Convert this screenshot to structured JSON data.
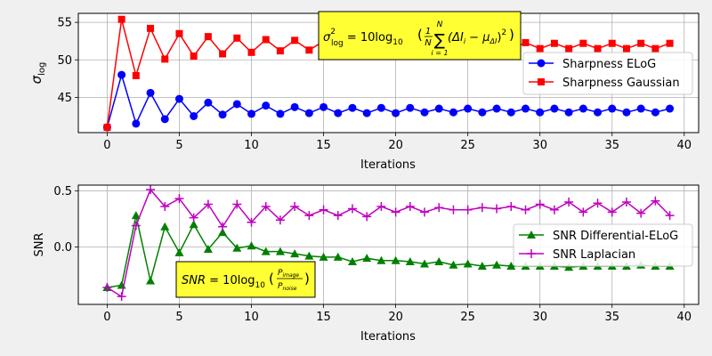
{
  "chart_data": [
    {
      "type": "line",
      "xlabel": "Iterations",
      "ylabel": "σ_log",
      "xlim": [
        -2,
        41
      ],
      "ylim": [
        40.3,
        56.2
      ],
      "xticks": [
        0,
        5,
        10,
        15,
        20,
        25,
        30,
        35,
        40
      ],
      "yticks": [
        45,
        50,
        55
      ],
      "grid": true,
      "legend_position": "center-right",
      "annotation": {
        "position": "top-center",
        "background": "#ffff33",
        "formula": {
          "lhs_base": "σ",
          "lhs_sup": "2",
          "lhs_sub": "log",
          "eq": " = 10log",
          "log_sub": "10",
          "frac_num": "1",
          "frac_den": "N",
          "sum_top": "N",
          "sum_bottom": "i = 1",
          "term": "(ΔI",
          "term_i": "i",
          "minus": " − μ",
          "mu_sub": "ΔI",
          "close": ")",
          "power": "2"
        }
      },
      "x": [
        0,
        1,
        2,
        3,
        4,
        5,
        6,
        7,
        8,
        9,
        10,
        11,
        12,
        13,
        14,
        15,
        16,
        17,
        18,
        19,
        20,
        21,
        22,
        23,
        24,
        25,
        26,
        27,
        28,
        29,
        30,
        31,
        32,
        33,
        34,
        35,
        36,
        37,
        38,
        39
      ],
      "series": [
        {
          "name": "Sharpness ELoG",
          "color": "#0000ff",
          "marker": "circle",
          "values": [
            41.0,
            48.0,
            41.5,
            45.6,
            42.1,
            44.8,
            42.5,
            44.3,
            42.7,
            44.1,
            42.8,
            43.9,
            42.8,
            43.7,
            42.9,
            43.7,
            42.9,
            43.6,
            42.9,
            43.6,
            42.9,
            43.6,
            43.0,
            43.5,
            43.0,
            43.5,
            43.0,
            43.5,
            43.0,
            43.5,
            43.0,
            43.5,
            43.0,
            43.5,
            43.0,
            43.5,
            43.0,
            43.5,
            43.0,
            43.5
          ]
        },
        {
          "name": "Sharpness Gaussian",
          "color": "#ff0000",
          "marker": "square",
          "values": [
            41.0,
            55.4,
            47.9,
            54.2,
            50.1,
            53.5,
            50.5,
            53.1,
            50.8,
            52.9,
            51.0,
            52.7,
            51.2,
            52.6,
            51.3,
            52.5,
            51.3,
            52.4,
            51.4,
            52.4,
            51.4,
            52.3,
            51.4,
            52.3,
            51.5,
            52.3,
            51.5,
            52.3,
            51.5,
            52.3,
            51.5,
            52.2,
            51.5,
            52.2,
            51.5,
            52.2,
            51.5,
            52.2,
            51.5,
            52.2
          ]
        }
      ]
    },
    {
      "type": "line",
      "xlabel": "Iterations",
      "ylabel": "SNR",
      "xlim": [
        -2,
        41
      ],
      "ylim": [
        -0.51,
        0.55
      ],
      "xticks": [
        0,
        5,
        10,
        15,
        20,
        25,
        30,
        35,
        40
      ],
      "yticks": [
        0.0,
        0.5
      ],
      "grid": true,
      "legend_position": "center-right",
      "annotation": {
        "position": "bottom-center-left",
        "background": "#ffff33",
        "formula": {
          "lhs": "SNR",
          "eq": " = 10log",
          "log_sub": "10",
          "frac_num": "P",
          "frac_num_sub": "image",
          "frac_den": "P",
          "frac_den_sub": "noise"
        }
      },
      "x": [
        0,
        1,
        2,
        3,
        4,
        5,
        6,
        7,
        8,
        9,
        10,
        11,
        12,
        13,
        14,
        15,
        16,
        17,
        18,
        19,
        20,
        21,
        22,
        23,
        24,
        25,
        26,
        27,
        28,
        29,
        30,
        31,
        32,
        33,
        34,
        35,
        36,
        37,
        38,
        39
      ],
      "series": [
        {
          "name": "SNR Differential-ELoG",
          "color": "#008000",
          "marker": "triangle",
          "values": [
            -0.36,
            -0.34,
            0.28,
            -0.3,
            0.18,
            -0.05,
            0.2,
            -0.02,
            0.13,
            -0.01,
            0.01,
            -0.04,
            -0.04,
            -0.06,
            -0.08,
            -0.09,
            -0.09,
            -0.13,
            -0.1,
            -0.12,
            -0.12,
            -0.13,
            -0.15,
            -0.13,
            -0.16,
            -0.15,
            -0.17,
            -0.16,
            -0.17,
            -0.17,
            -0.17,
            -0.17,
            -0.18,
            -0.17,
            -0.17,
            -0.17,
            -0.17,
            -0.16,
            -0.17,
            -0.17
          ]
        },
        {
          "name": "SNR Laplacian",
          "color": "#bf00bf",
          "marker": "plus",
          "values": [
            -0.36,
            -0.44,
            0.19,
            0.51,
            0.36,
            0.43,
            0.26,
            0.38,
            0.18,
            0.38,
            0.22,
            0.36,
            0.24,
            0.36,
            0.28,
            0.33,
            0.28,
            0.34,
            0.27,
            0.36,
            0.31,
            0.36,
            0.31,
            0.35,
            0.33,
            0.33,
            0.35,
            0.34,
            0.36,
            0.33,
            0.38,
            0.33,
            0.4,
            0.31,
            0.39,
            0.31,
            0.4,
            0.3,
            0.41,
            0.28
          ]
        }
      ]
    }
  ]
}
